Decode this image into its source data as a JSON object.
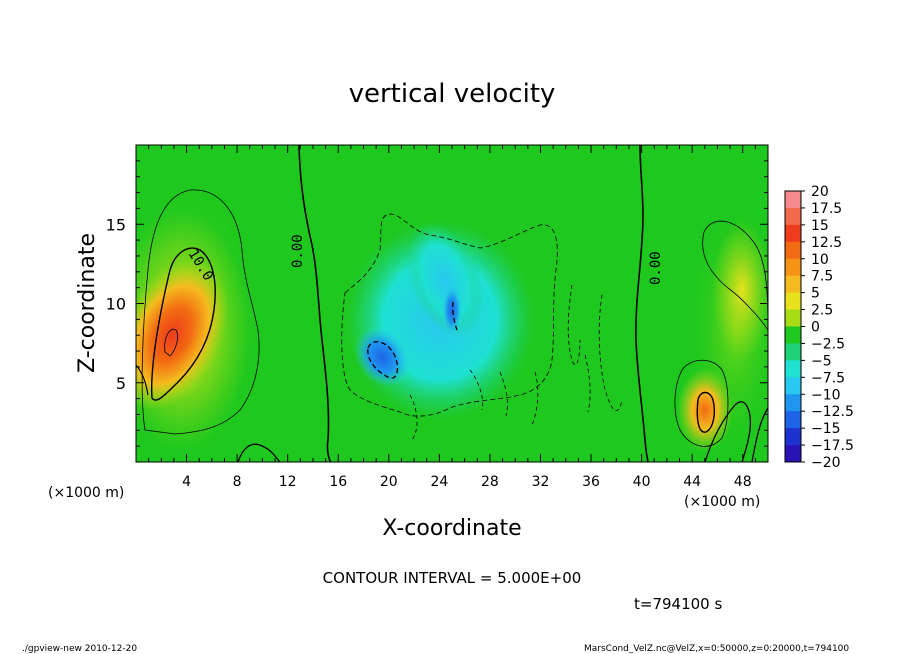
{
  "chart_data": {
    "type": "heatmap",
    "title": "vertical velocity",
    "xlabel": "X-coordinate",
    "ylabel": "Z-coordinate",
    "x_unit": "(×1000 m)",
    "y_unit": "(×1000 m)",
    "x_range": [
      0,
      50
    ],
    "y_range": [
      0,
      20
    ],
    "x_ticks": [
      "4",
      "8",
      "12",
      "16",
      "20",
      "24",
      "28",
      "32",
      "36",
      "40",
      "44",
      "48"
    ],
    "y_ticks": [
      "5",
      "10",
      "15"
    ],
    "colorbar": {
      "labels": [
        "20",
        "17.5",
        "15",
        "12.5",
        "10",
        "7.5",
        "5",
        "2.5",
        "0",
        "−2.5",
        "−5",
        "−7.5",
        "−10",
        "−12.5",
        "−15",
        "−17.5",
        "−20"
      ],
      "colors": [
        "#f58a8a",
        "#f26a4a",
        "#ef3c1c",
        "#f26a12",
        "#f59414",
        "#f5bb1e",
        "#e8e21e",
        "#a8dc14",
        "#1ec81e",
        "#1ed27a",
        "#1ee1d2",
        "#28c8f0",
        "#1e96f0",
        "#1e64e6",
        "#1e32d2",
        "#2814b4",
        "#6428a0"
      ]
    },
    "contour_labels": [
      "10.0",
      "0.00",
      "0.00"
    ],
    "contour_interval": "CONTOUR INTERVAL = 5.000E+00",
    "time": "t=794100 s"
  },
  "footer": {
    "left": "./gpview-new  2010-12-20",
    "right": "MarsCond_VelZ.nc@VelZ,x=0:50000,z=0:20000,t=794100"
  }
}
